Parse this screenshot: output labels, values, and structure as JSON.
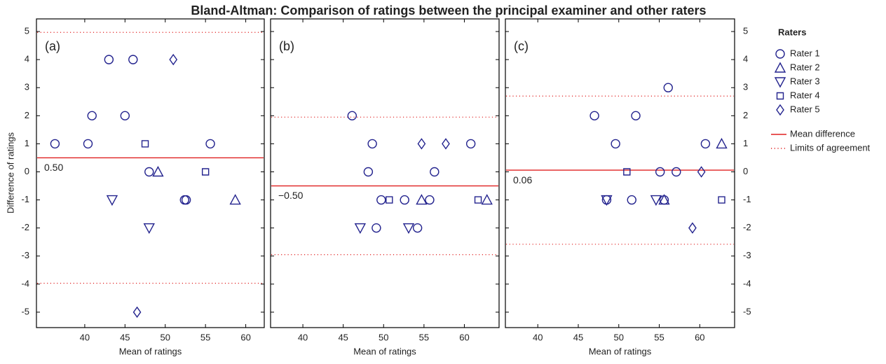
{
  "title": "Bland-Altman: Comparison of ratings between the principal examiner and other raters",
  "legend_title": "Raters",
  "chart_data": [
    {
      "type": "scatter",
      "label": "(a)",
      "xlabel": "Mean of ratings",
      "ylabel": "Difference of ratings",
      "xlim": [
        34,
        62.3
      ],
      "xticks": [
        40,
        45,
        50,
        55,
        60
      ],
      "ylim": [
        -5.55,
        5.45
      ],
      "yticks": [
        -5,
        -4,
        -3,
        -2,
        -1,
        0,
        1,
        2,
        3,
        4,
        5
      ],
      "series": [
        {
          "name": "Rater 1",
          "color": "#23238e",
          "marker": "circle",
          "x": [
            36.3,
            40.4,
            40.9,
            43.0,
            45.0,
            46.0,
            48.0,
            52.4,
            52.6,
            55.6
          ],
          "values": [
            1,
            1,
            2,
            4,
            2,
            4,
            0,
            -1,
            -1,
            1
          ]
        },
        {
          "name": "Rater 2",
          "color": "#23238e",
          "marker": "triangle-up",
          "x": [
            49.1,
            58.7
          ],
          "values": [
            0,
            -1
          ]
        },
        {
          "name": "Rater 3",
          "color": "#23238e",
          "marker": "triangle-down",
          "x": [
            43.4,
            48.0
          ],
          "values": [
            -1,
            -2
          ]
        },
        {
          "name": "Rater 4",
          "color": "#23238e",
          "marker": "square",
          "x": [
            47.5,
            55.0
          ],
          "values": [
            1,
            0
          ]
        },
        {
          "name": "Rater 5",
          "color": "#23238e",
          "marker": "diamond",
          "x": [
            51.0,
            46.5
          ],
          "values": [
            4,
            -5
          ]
        }
      ],
      "lines": [
        {
          "name": "Mean difference",
          "color": "#e02020",
          "style": "solid",
          "values": [
            0.5
          ],
          "value_labels": [
            "0.50"
          ]
        },
        {
          "name": "Limits of agreement",
          "color": "#e02020",
          "style": "dotted",
          "values": [
            4.97,
            -3.97
          ]
        }
      ]
    },
    {
      "type": "scatter",
      "label": "(b)",
      "xlabel": "Mean of ratings",
      "xlim": [
        36,
        64.3
      ],
      "xticks": [
        40,
        45,
        50,
        55,
        60
      ],
      "ylim": [
        -5.55,
        5.45
      ],
      "yticks": [
        -5,
        -4,
        -3,
        -2,
        -1,
        0,
        1,
        2,
        3,
        4,
        5
      ],
      "series": [
        {
          "color": "#23238e",
          "marker": "circle",
          "x": [
            46.1,
            48.6,
            48.1,
            49.7,
            49.1,
            52.6,
            54.2,
            55.7,
            56.3,
            60.8
          ],
          "values": [
            2,
            1,
            0,
            -1,
            -2,
            -1,
            -2,
            -1,
            0,
            1
          ]
        },
        {
          "color": "#23238e",
          "marker": "triangle-up",
          "x": [
            54.7,
            62.8
          ],
          "values": [
            -1,
            -1
          ]
        },
        {
          "color": "#23238e",
          "marker": "triangle-down",
          "x": [
            47.1,
            53.1
          ],
          "values": [
            -2,
            -2
          ]
        },
        {
          "color": "#23238e",
          "marker": "square",
          "x": [
            50.7,
            61.7
          ],
          "values": [
            -1,
            -1
          ]
        },
        {
          "color": "#23238e",
          "marker": "diamond",
          "x": [
            54.7,
            57.7
          ],
          "values": [
            1,
            1
          ]
        }
      ],
      "lines": [
        {
          "color": "#e02020",
          "style": "solid",
          "values": [
            -0.5
          ],
          "value_labels": [
            "−0.50"
          ]
        },
        {
          "color": "#e02020",
          "style": "dotted",
          "values": [
            1.95,
            -2.95
          ]
        }
      ]
    },
    {
      "type": "scatter",
      "label": "(c)",
      "xlabel": "Mean of ratings",
      "xlim": [
        36,
        64.3
      ],
      "xticks": [
        40,
        45,
        50,
        55,
        60
      ],
      "ylim": [
        -5.55,
        5.45
      ],
      "yticks": [
        -5,
        -4,
        -3,
        -2,
        -1,
        0,
        1,
        2,
        3,
        4,
        5
      ],
      "series": [
        {
          "color": "#23238e",
          "marker": "circle",
          "x": [
            47.0,
            49.6,
            52.1,
            48.5,
            51.6,
            55.1,
            57.1,
            56.1,
            60.7,
            55.6
          ],
          "values": [
            2,
            1,
            2,
            -1,
            -1,
            0,
            0,
            3,
            1,
            -1
          ]
        },
        {
          "color": "#23238e",
          "marker": "triangle-up",
          "x": [
            55.6,
            62.7
          ],
          "values": [
            -1,
            1
          ]
        },
        {
          "color": "#23238e",
          "marker": "triangle-down",
          "x": [
            48.5,
            54.6
          ],
          "values": [
            -1,
            -1
          ]
        },
        {
          "color": "#23238e",
          "marker": "square",
          "x": [
            51.0,
            62.7
          ],
          "values": [
            0,
            -1
          ]
        },
        {
          "color": "#23238e",
          "marker": "diamond",
          "x": [
            60.2,
            59.1
          ],
          "values": [
            0,
            -2
          ]
        }
      ],
      "lines": [
        {
          "color": "#e02020",
          "style": "solid",
          "values": [
            0.06
          ],
          "value_labels": [
            "0.06"
          ]
        },
        {
          "color": "#e02020",
          "style": "dotted",
          "values": [
            2.7,
            -2.58
          ]
        }
      ]
    }
  ]
}
